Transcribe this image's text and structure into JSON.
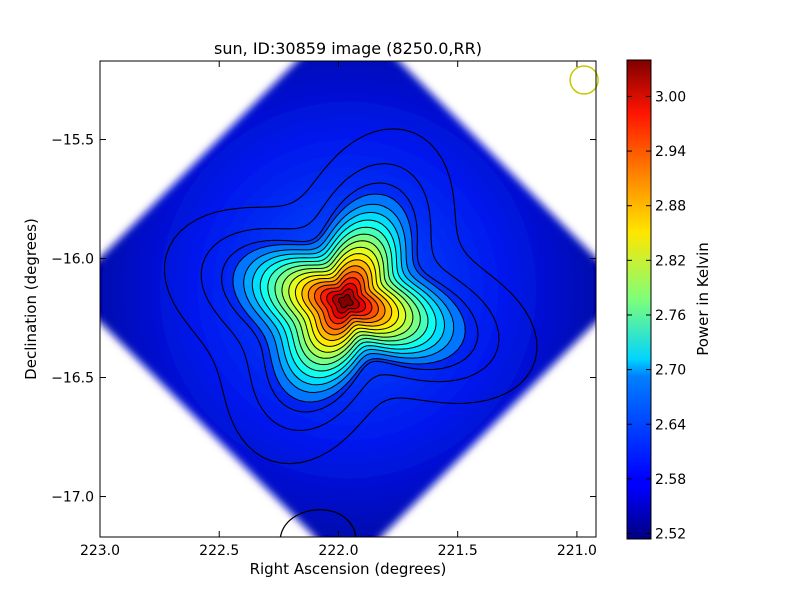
{
  "chart_data": {
    "type": "heatmap",
    "title": "sun, ID:30859 image (8250.0,RR)",
    "xlabel": "Right Ascension (degrees)",
    "ylabel": "Declination (degrees)",
    "colorbar_label": "Power in Kelvin",
    "xlim": [
      223.0,
      220.92
    ],
    "ylim": [
      -17.17,
      -15.17
    ],
    "x_ticks": [
      223.0,
      222.5,
      222.0,
      221.5,
      221.0
    ],
    "x_tick_labels": [
      "223.0",
      "222.5",
      "222.0",
      "221.5",
      "221.0"
    ],
    "y_ticks": [
      -15.5,
      -16.0,
      -16.5,
      -17.0
    ],
    "y_tick_labels": [
      "−15.5",
      "−16.0",
      "−16.5",
      "−17.0"
    ],
    "colorbar_range": [
      2.514,
      3.04
    ],
    "colorbar_ticks": [
      2.52,
      2.58,
      2.64,
      2.7,
      2.76,
      2.82,
      2.88,
      2.94,
      3.0
    ],
    "colorbar_tick_labels": [
      "2.52",
      "2.58",
      "2.64",
      "2.70",
      "2.76",
      "2.82",
      "2.88",
      "2.94",
      "3.00"
    ],
    "colormap": "jet",
    "peak": {
      "ra": 221.97,
      "dec": -16.18,
      "value": 3.03
    },
    "image_extent_shape": "diamond",
    "beam_marker": {
      "ra": 220.97,
      "dec": -15.25,
      "color": "#c8c800"
    },
    "contour_color": "#000000",
    "grid": false
  }
}
